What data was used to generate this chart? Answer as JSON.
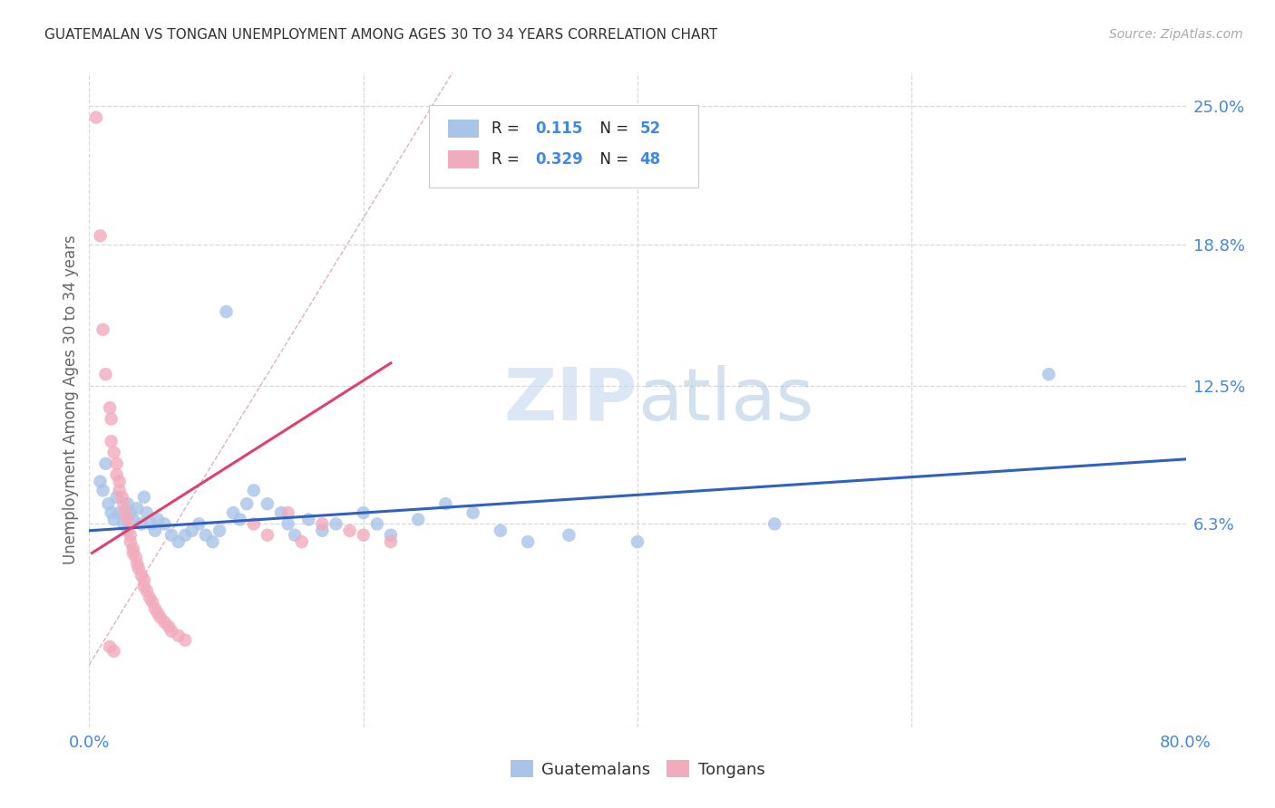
{
  "title": "GUATEMALAN VS TONGAN UNEMPLOYMENT AMONG AGES 30 TO 34 YEARS CORRELATION CHART",
  "source": "Source: ZipAtlas.com",
  "ylabel": "Unemployment Among Ages 30 to 34 years",
  "xlim": [
    0.0,
    0.8
  ],
  "ylim": [
    -0.028,
    0.265
  ],
  "ytick_positions": [
    0.063,
    0.125,
    0.188,
    0.25
  ],
  "ytick_labels": [
    "6.3%",
    "12.5%",
    "18.8%",
    "25.0%"
  ],
  "blue_color": "#a8c4e8",
  "pink_color": "#f2aabd",
  "blue_line_color": "#3060c0",
  "pink_line_color": "#e04070",
  "diag_line_color": "#d0a0b0",
  "legend_R_blue": "0.115",
  "legend_N_blue": "52",
  "legend_R_pink": "0.329",
  "legend_N_pink": "48",
  "legend_label_blue": "Guatemalans",
  "legend_label_pink": "Tongans",
  "watermark_zip": "ZIP",
  "watermark_atlas": "atlas",
  "blue_scatter": [
    [
      0.008,
      0.082
    ],
    [
      0.01,
      0.078
    ],
    [
      0.012,
      0.09
    ],
    [
      0.014,
      0.072
    ],
    [
      0.016,
      0.068
    ],
    [
      0.018,
      0.065
    ],
    [
      0.02,
      0.075
    ],
    [
      0.022,
      0.068
    ],
    [
      0.025,
      0.063
    ],
    [
      0.028,
      0.072
    ],
    [
      0.03,
      0.068
    ],
    [
      0.032,
      0.065
    ],
    [
      0.035,
      0.07
    ],
    [
      0.038,
      0.063
    ],
    [
      0.04,
      0.075
    ],
    [
      0.042,
      0.068
    ],
    [
      0.045,
      0.063
    ],
    [
      0.048,
      0.06
    ],
    [
      0.05,
      0.065
    ],
    [
      0.055,
      0.063
    ],
    [
      0.06,
      0.058
    ],
    [
      0.065,
      0.055
    ],
    [
      0.07,
      0.058
    ],
    [
      0.075,
      0.06
    ],
    [
      0.08,
      0.063
    ],
    [
      0.085,
      0.058
    ],
    [
      0.09,
      0.055
    ],
    [
      0.095,
      0.06
    ],
    [
      0.1,
      0.158
    ],
    [
      0.105,
      0.068
    ],
    [
      0.11,
      0.065
    ],
    [
      0.115,
      0.072
    ],
    [
      0.12,
      0.078
    ],
    [
      0.13,
      0.072
    ],
    [
      0.14,
      0.068
    ],
    [
      0.145,
      0.063
    ],
    [
      0.15,
      0.058
    ],
    [
      0.16,
      0.065
    ],
    [
      0.17,
      0.06
    ],
    [
      0.18,
      0.063
    ],
    [
      0.2,
      0.068
    ],
    [
      0.21,
      0.063
    ],
    [
      0.22,
      0.058
    ],
    [
      0.24,
      0.065
    ],
    [
      0.26,
      0.072
    ],
    [
      0.28,
      0.068
    ],
    [
      0.3,
      0.06
    ],
    [
      0.32,
      0.055
    ],
    [
      0.35,
      0.058
    ],
    [
      0.4,
      0.055
    ],
    [
      0.5,
      0.063
    ],
    [
      0.7,
      0.13
    ]
  ],
  "pink_scatter": [
    [
      0.005,
      0.245
    ],
    [
      0.008,
      0.192
    ],
    [
      0.01,
      0.15
    ],
    [
      0.012,
      0.13
    ],
    [
      0.015,
      0.115
    ],
    [
      0.016,
      0.11
    ],
    [
      0.016,
      0.1
    ],
    [
      0.018,
      0.095
    ],
    [
      0.02,
      0.09
    ],
    [
      0.02,
      0.085
    ],
    [
      0.022,
      0.082
    ],
    [
      0.022,
      0.078
    ],
    [
      0.024,
      0.075
    ],
    [
      0.025,
      0.072
    ],
    [
      0.026,
      0.068
    ],
    [
      0.028,
      0.065
    ],
    [
      0.028,
      0.06
    ],
    [
      0.03,
      0.058
    ],
    [
      0.03,
      0.055
    ],
    [
      0.032,
      0.052
    ],
    [
      0.032,
      0.05
    ],
    [
      0.034,
      0.048
    ],
    [
      0.035,
      0.045
    ],
    [
      0.036,
      0.043
    ],
    [
      0.038,
      0.04
    ],
    [
      0.04,
      0.038
    ],
    [
      0.04,
      0.035
    ],
    [
      0.042,
      0.033
    ],
    [
      0.044,
      0.03
    ],
    [
      0.046,
      0.028
    ],
    [
      0.048,
      0.025
    ],
    [
      0.05,
      0.023
    ],
    [
      0.052,
      0.021
    ],
    [
      0.055,
      0.019
    ],
    [
      0.058,
      0.017
    ],
    [
      0.06,
      0.015
    ],
    [
      0.065,
      0.013
    ],
    [
      0.07,
      0.011
    ],
    [
      0.12,
      0.063
    ],
    [
      0.13,
      0.058
    ],
    [
      0.145,
      0.068
    ],
    [
      0.155,
      0.055
    ],
    [
      0.17,
      0.063
    ],
    [
      0.19,
      0.06
    ],
    [
      0.2,
      0.058
    ],
    [
      0.22,
      0.055
    ],
    [
      0.015,
      0.008
    ],
    [
      0.018,
      0.006
    ]
  ],
  "blue_line_x": [
    0.0,
    0.8
  ],
  "blue_line_y": [
    0.06,
    0.092
  ],
  "pink_line_x": [
    0.002,
    0.22
  ],
  "pink_line_y": [
    0.05,
    0.135
  ],
  "diag_line_x": [
    0.0,
    0.265
  ],
  "diag_line_y": [
    0.0,
    0.265
  ],
  "bg_color": "#ffffff",
  "grid_color": "#d8d8d8",
  "title_color": "#333333",
  "source_color": "#aaaaaa",
  "ylabel_color": "#666666",
  "tick_color": "#4488dd",
  "accent_color": "#4488dd"
}
